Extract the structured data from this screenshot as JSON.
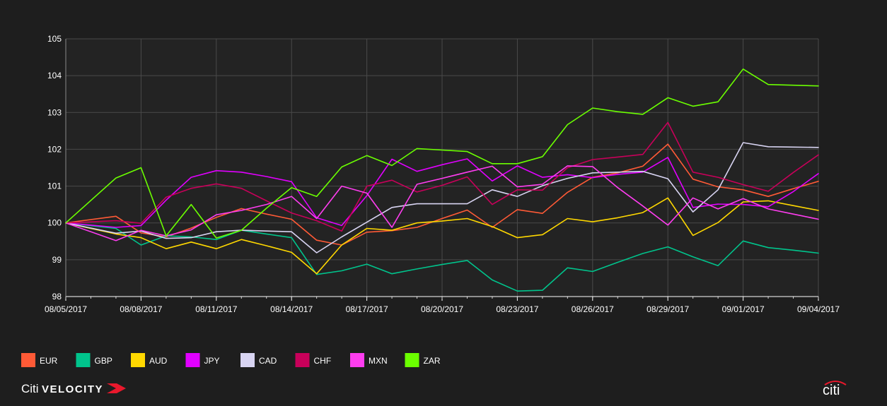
{
  "chart_data": {
    "type": "line",
    "title": "",
    "xlabel": "",
    "ylabel": "",
    "ylim": [
      98,
      105
    ],
    "yticks": [
      "98",
      "99",
      "100",
      "101",
      "102",
      "103",
      "104",
      "105"
    ],
    "x_labels": [
      "08/05/2017",
      "08/08/2017",
      "08/11/2017",
      "08/14/2017",
      "08/17/2017",
      "08/20/2017",
      "08/23/2017",
      "08/26/2017",
      "08/29/2017",
      "09/01/2017",
      "09/04/2017"
    ],
    "x_domain": [
      0,
      30
    ],
    "grid": true,
    "legend_position": "bottom",
    "series": [
      {
        "name": "EUR",
        "color": "#FF5A36",
        "x": [
          0,
          2,
          3,
          4,
          5,
          6,
          7,
          8,
          9,
          10,
          11,
          12,
          13,
          14,
          15,
          16,
          17,
          18,
          19,
          20,
          21,
          22,
          23,
          24,
          25,
          26,
          27,
          28,
          29,
          30
        ],
        "values": [
          100.0,
          100.18,
          99.73,
          99.62,
          99.86,
          100.15,
          100.39,
          100.24,
          100.1,
          99.53,
          99.4,
          99.75,
          99.79,
          99.88,
          100.12,
          100.35,
          99.88,
          100.36,
          100.26,
          100.83,
          101.24,
          101.36,
          101.54,
          102.14,
          101.19,
          100.98,
          100.9,
          100.72,
          100.93,
          101.13
        ]
      },
      {
        "name": "GBP",
        "color": "#00C48C",
        "x": [
          0,
          2,
          3,
          4,
          5,
          6,
          7,
          8,
          9,
          10,
          11,
          12,
          13,
          14,
          15,
          16,
          17,
          18,
          19,
          20,
          21,
          22,
          23,
          24,
          25,
          26,
          27,
          28,
          29,
          30
        ],
        "values": [
          100.0,
          99.85,
          99.4,
          99.65,
          99.62,
          99.55,
          99.8,
          99.7,
          99.6,
          98.6,
          98.7,
          98.88,
          98.62,
          98.75,
          98.87,
          98.98,
          98.45,
          98.15,
          98.17,
          98.78,
          98.68,
          98.93,
          99.17,
          99.35,
          99.08,
          98.84,
          99.51,
          99.33,
          99.26,
          99.18
        ]
      },
      {
        "name": "AUD",
        "color": "#FFD800",
        "x": [
          0,
          2,
          3,
          4,
          5,
          6,
          7,
          8,
          9,
          10,
          11,
          12,
          13,
          14,
          15,
          16,
          17,
          18,
          19,
          20,
          21,
          22,
          23,
          24,
          25,
          26,
          27,
          28,
          29,
          30
        ],
        "values": [
          100.0,
          99.7,
          99.6,
          99.3,
          99.48,
          99.3,
          99.55,
          99.38,
          99.2,
          98.62,
          99.4,
          99.85,
          99.8,
          100.0,
          100.05,
          100.12,
          99.9,
          99.6,
          99.68,
          100.12,
          100.03,
          100.14,
          100.28,
          100.68,
          99.66,
          100.01,
          100.57,
          100.6,
          100.47,
          100.34
        ]
      },
      {
        "name": "JPY",
        "color": "#E100FF",
        "x": [
          0,
          2,
          3,
          4,
          5,
          6,
          7,
          8,
          9,
          10,
          11,
          12,
          13,
          14,
          15,
          16,
          17,
          18,
          19,
          20,
          21,
          22,
          23,
          24,
          25,
          26,
          27,
          28,
          29,
          30
        ],
        "values": [
          100.0,
          99.88,
          99.93,
          100.62,
          101.24,
          101.42,
          101.38,
          101.26,
          101.12,
          100.14,
          99.93,
          100.74,
          101.73,
          101.4,
          101.58,
          101.74,
          101.14,
          101.55,
          101.24,
          101.31,
          101.23,
          101.32,
          101.38,
          101.78,
          100.42,
          100.51,
          100.5,
          100.44,
          100.85,
          101.34
        ]
      },
      {
        "name": "CAD",
        "color": "#D8D4F2",
        "x": [
          0,
          2,
          3,
          4,
          5,
          6,
          7,
          8,
          9,
          10,
          11,
          12,
          13,
          14,
          15,
          16,
          17,
          18,
          19,
          20,
          21,
          22,
          23,
          24,
          25,
          26,
          27,
          28,
          29,
          30
        ],
        "values": [
          100.0,
          99.72,
          99.78,
          99.58,
          99.6,
          99.76,
          99.8,
          99.78,
          99.76,
          99.19,
          99.62,
          100.02,
          100.42,
          100.52,
          100.52,
          100.52,
          100.9,
          100.72,
          101.01,
          101.21,
          101.36,
          101.38,
          101.4,
          101.2,
          100.3,
          100.9,
          102.18,
          102.07,
          102.06,
          102.05
        ]
      },
      {
        "name": "CHF",
        "color": "#C8005A",
        "x": [
          0,
          2,
          3,
          4,
          5,
          6,
          7,
          8,
          9,
          10,
          11,
          12,
          13,
          14,
          15,
          16,
          17,
          18,
          19,
          20,
          21,
          22,
          23,
          24,
          25,
          26,
          27,
          28,
          29,
          30
        ],
        "values": [
          100.0,
          100.06,
          99.99,
          100.7,
          100.94,
          101.06,
          100.94,
          100.6,
          100.27,
          100.06,
          99.78,
          101.0,
          101.16,
          100.84,
          101.02,
          101.25,
          100.5,
          100.9,
          100.89,
          101.5,
          101.72,
          101.79,
          101.86,
          102.73,
          101.38,
          101.24,
          101.04,
          100.86,
          101.37,
          101.85
        ]
      },
      {
        "name": "MXN",
        "color": "#FF3DF0",
        "x": [
          0,
          2,
          3,
          4,
          5,
          6,
          7,
          8,
          9,
          10,
          11,
          12,
          13,
          14,
          15,
          16,
          17,
          18,
          19,
          20,
          21,
          22,
          23,
          24,
          25,
          26,
          27,
          28,
          29,
          30
        ],
        "values": [
          100.0,
          99.52,
          99.8,
          99.65,
          99.81,
          100.22,
          100.34,
          100.5,
          100.72,
          100.12,
          101.0,
          100.81,
          99.88,
          101.05,
          101.21,
          101.38,
          101.54,
          100.98,
          101.05,
          101.55,
          101.53,
          100.96,
          100.46,
          99.94,
          100.68,
          100.38,
          100.66,
          100.38,
          100.24,
          100.1
        ]
      },
      {
        "name": "ZAR",
        "color": "#6BFF00",
        "x": [
          0,
          2,
          3,
          4,
          5,
          6,
          7,
          8,
          9,
          10,
          11,
          12,
          13,
          14,
          15,
          16,
          17,
          18,
          19,
          20,
          21,
          22,
          23,
          24,
          25,
          26,
          27,
          28,
          29,
          30
        ],
        "values": [
          100.0,
          101.22,
          101.5,
          99.65,
          100.5,
          99.59,
          99.8,
          100.4,
          100.96,
          100.72,
          101.52,
          101.83,
          101.56,
          102.02,
          101.98,
          101.94,
          101.61,
          101.61,
          101.8,
          102.67,
          103.12,
          103.02,
          102.95,
          103.4,
          103.17,
          103.29,
          104.18,
          103.76,
          103.74,
          103.72
        ]
      }
    ]
  },
  "footer": {
    "brand_citi": "Citi",
    "brand_velocity": "VELOCITY",
    "brand_right": "citi"
  }
}
